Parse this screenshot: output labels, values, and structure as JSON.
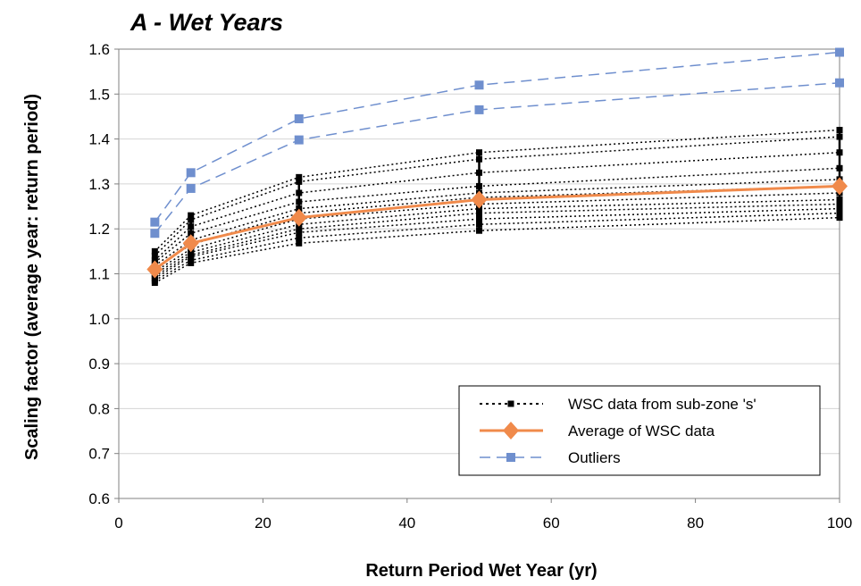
{
  "chart_data": {
    "type": "line",
    "title": "A - Wet Years",
    "xlabel": "Return Period Wet Year (yr)",
    "ylabel": "Scaling factor (average year: return period)",
    "xlim": [
      0,
      100
    ],
    "ylim": [
      0.6,
      1.6
    ],
    "xticks": [
      0,
      20,
      40,
      60,
      80,
      100
    ],
    "yticks": [
      0.6,
      0.7,
      0.8,
      0.9,
      1.0,
      1.1,
      1.2,
      1.3,
      1.4,
      1.5,
      1.6
    ],
    "x": [
      5,
      10,
      25,
      50,
      100
    ],
    "grid": "horizontal",
    "legend_position": "bottom-right",
    "legend": [
      "WSC data from sub-zone 's'",
      "Average of WSC data",
      "Outliers"
    ],
    "colors": {
      "wsc": "#000000",
      "average": "#f08a4b",
      "outliers": "#6f8fce",
      "grid": "#d4d4d4"
    },
    "wsc_label": "WSC data from sub-zone 's'",
    "wsc_series": [
      [
        1.15,
        1.23,
        1.315,
        1.37,
        1.42
      ],
      [
        1.14,
        1.22,
        1.305,
        1.355,
        1.405
      ],
      [
        1.13,
        1.205,
        1.28,
        1.325,
        1.37
      ],
      [
        1.125,
        1.19,
        1.26,
        1.295,
        1.335
      ],
      [
        1.118,
        1.175,
        1.245,
        1.28,
        1.31
      ],
      [
        1.112,
        1.165,
        1.235,
        1.27,
        1.295
      ],
      [
        1.105,
        1.155,
        1.222,
        1.255,
        1.28
      ],
      [
        1.1,
        1.148,
        1.21,
        1.245,
        1.265
      ],
      [
        1.095,
        1.142,
        1.2,
        1.235,
        1.255
      ],
      [
        1.09,
        1.138,
        1.192,
        1.222,
        1.245
      ],
      [
        1.085,
        1.13,
        1.18,
        1.21,
        1.235
      ],
      [
        1.08,
        1.124,
        1.168,
        1.196,
        1.225
      ]
    ],
    "average": {
      "name": "Average of WSC data",
      "values": [
        1.11,
        1.168,
        1.225,
        1.265,
        1.295
      ]
    },
    "outliers": [
      {
        "name": "Outliers",
        "values": [
          1.215,
          1.325,
          1.445,
          1.52,
          1.593
        ]
      },
      {
        "values": [
          1.19,
          1.29,
          1.398,
          1.465,
          1.525
        ]
      }
    ]
  }
}
